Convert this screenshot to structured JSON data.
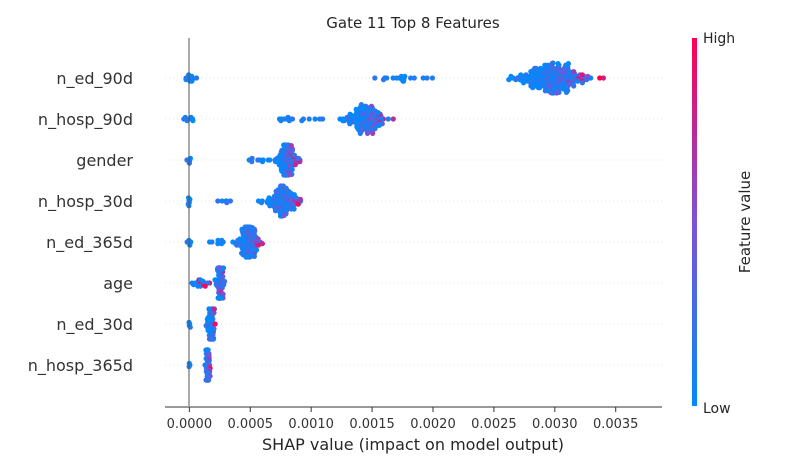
{
  "chart_data": {
    "type": "scatter",
    "subtype": "shap-beeswarm",
    "title": "Gate 11 Top 8 Features",
    "xlabel": "SHAP value (impact on model output)",
    "xlim": [
      -0.0002,
      0.00388
    ],
    "xticks": [
      0.0,
      0.0005,
      0.001,
      0.0015,
      0.002,
      0.0025,
      0.003,
      0.0035
    ],
    "xtick_labels": [
      "0.0000",
      "0.0005",
      "0.0010",
      "0.0015",
      "0.0020",
      "0.0025",
      "0.0030",
      "0.0035"
    ],
    "features": [
      {
        "name": "n_ed_90d",
        "groups": [
          {
            "x": 1e-05,
            "count": 12,
            "spread": 7e-05
          },
          {
            "x": 0.0018,
            "count": 20,
            "spread": 0.00035
          },
          {
            "x": 0.00298,
            "count": 260,
            "spread": 0.00028
          }
        ]
      },
      {
        "name": "n_hosp_90d",
        "groups": [
          {
            "x": 0.0,
            "count": 8,
            "spread": 5e-05
          },
          {
            "x": 0.00085,
            "count": 15,
            "spread": 0.00025
          },
          {
            "x": 0.00145,
            "count": 150,
            "spread": 0.00015
          }
        ]
      },
      {
        "name": "gender",
        "groups": [
          {
            "x": 0.0,
            "count": 5,
            "spread": 2e-05
          },
          {
            "x": 0.00055,
            "count": 10,
            "spread": 0.00015
          },
          {
            "x": 0.0008,
            "count": 110,
            "spread": 8e-05
          }
        ]
      },
      {
        "name": "n_hosp_30d",
        "groups": [
          {
            "x": 0.0,
            "count": 6,
            "spread": 2e-05
          },
          {
            "x": 0.0003,
            "count": 6,
            "spread": 0.0001
          },
          {
            "x": 0.00077,
            "count": 130,
            "spread": 0.00012
          }
        ]
      },
      {
        "name": "n_ed_365d",
        "groups": [
          {
            "x": 0.0,
            "count": 6,
            "spread": 2e-05
          },
          {
            "x": 0.00025,
            "count": 8,
            "spread": 0.0001
          },
          {
            "x": 0.00048,
            "count": 120,
            "spread": 0.0001
          }
        ]
      },
      {
        "name": "age",
        "groups": [
          {
            "x": 0.0001,
            "count": 20,
            "spread": 7e-05
          },
          {
            "x": 0.00025,
            "count": 80,
            "spread": 3e-05
          }
        ]
      },
      {
        "name": "n_ed_30d",
        "groups": [
          {
            "x": 0.0,
            "count": 4,
            "spread": 1e-05
          },
          {
            "x": 0.00018,
            "count": 70,
            "spread": 3e-05
          }
        ]
      },
      {
        "name": "n_hosp_365d",
        "groups": [
          {
            "x": 0.0,
            "count": 3,
            "spread": 1e-05
          },
          {
            "x": 0.00015,
            "count": 60,
            "spread": 2e-05
          }
        ]
      }
    ],
    "colorbar": {
      "label": "Feature value",
      "high_label": "High",
      "low_label": "Low",
      "low_color": "#008afb",
      "mid_color": "#7c52d7",
      "high_color": "#ff0052"
    },
    "grid": false,
    "zero_line": true
  }
}
